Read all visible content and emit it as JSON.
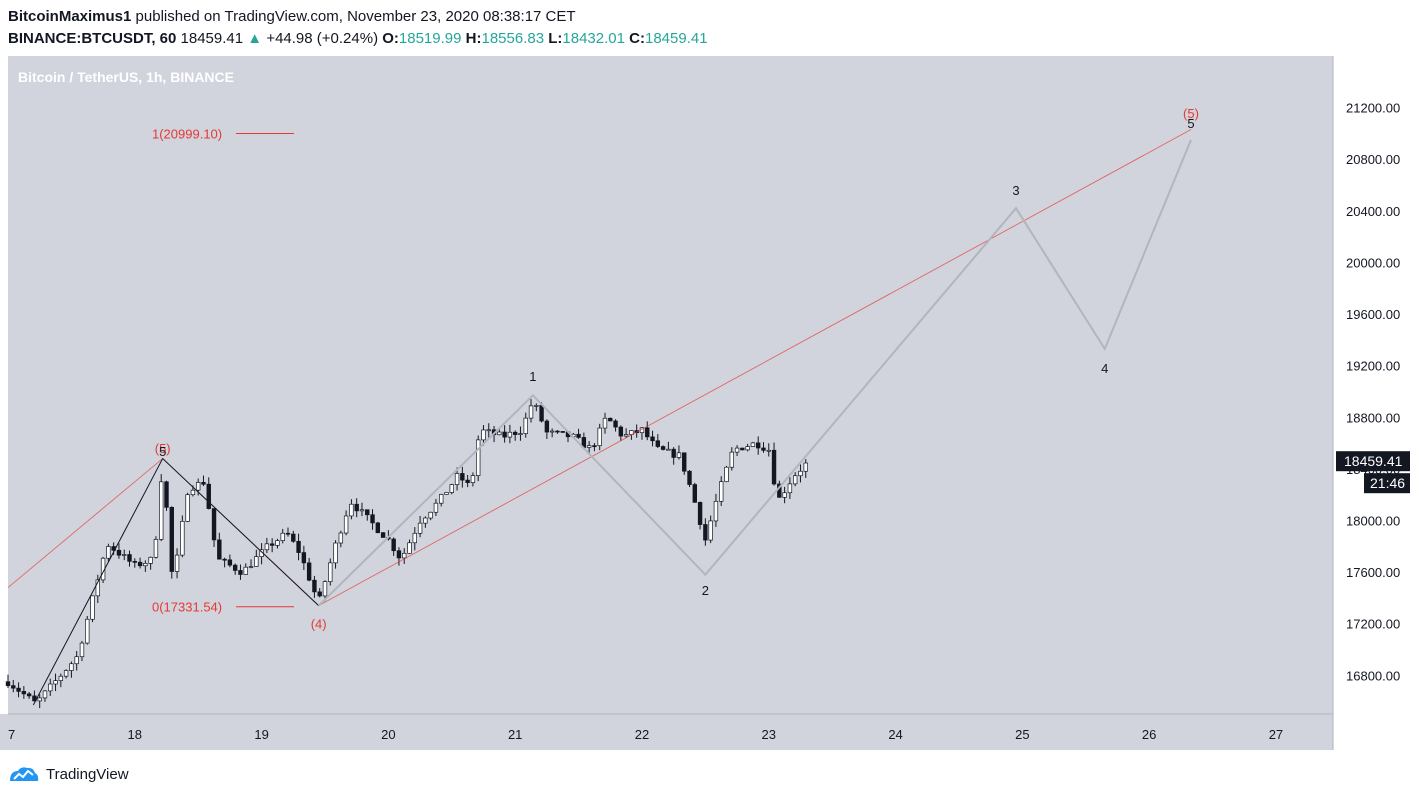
{
  "header": {
    "author": "BitcoinMaximus1",
    "published_text": "published on TradingView.com, November 23, 2020 08:38:17 CET",
    "symbol": "BINANCE:BTCUSDT, 60",
    "last": "18459.41",
    "change": "+44.98 (+0.24%)",
    "o_label": "O:",
    "o": "18519.99",
    "h_label": "H:",
    "h": "18556.83",
    "l_label": "L:",
    "l": "18432.01",
    "c_label": "C:",
    "c": "18459.41"
  },
  "footer": {
    "brand": "TradingView"
  },
  "colors": {
    "plot_bg": "#d1d4dc",
    "up": "#ffffff",
    "down": "#131722",
    "red": "#e53935",
    "projection": "#b2b5be",
    "axis_bg": "#ffffff"
  },
  "chart_data": {
    "type": "candlestick",
    "title": "Bitcoin / TetherUS, 1h, BINANCE",
    "currency": "USDT",
    "x_ticks": [
      "7",
      "18",
      "19",
      "20",
      "21",
      "22",
      "23",
      "24",
      "25",
      "26",
      "27"
    ],
    "x_range": [
      17.0,
      27.45
    ],
    "y_ticks": [
      "16800.00",
      "17200.00",
      "17600.00",
      "18000.00",
      "18400.00",
      "18800.00",
      "19200.00",
      "19600.00",
      "20000.00",
      "20400.00",
      "20800.00",
      "21200.00",
      "21600.00"
    ],
    "y_range": [
      16500,
      21600
    ],
    "last_price_label": "18459.41",
    "countdown": "21:46",
    "fib": [
      {
        "label": "1(20999.10)",
        "value": 20999.1
      },
      {
        "label": "0(17331.54)",
        "value": 17331.54
      }
    ],
    "swing_path": [
      [
        17.2,
        16570
      ],
      [
        18.22,
        18480
      ],
      [
        19.45,
        17340
      ]
    ],
    "projection_path": [
      [
        19.45,
        17340
      ],
      [
        21.14,
        18970
      ],
      [
        22.5,
        17580
      ],
      [
        24.95,
        20420
      ],
      [
        25.65,
        19330
      ],
      [
        26.33,
        20950
      ]
    ],
    "trendlines": [
      {
        "from": [
          17.0,
          17480
        ],
        "to": [
          18.22,
          18480
        ]
      },
      {
        "from": [
          18.22,
          18480
        ],
        "to": [
          19.45,
          17340
        ]
      },
      {
        "from": [
          19.45,
          17340
        ],
        "to": [
          26.33,
          21030
        ]
      }
    ],
    "wave_labels": [
      {
        "text": "(5)",
        "x": 18.22,
        "y": 18560,
        "color": "red"
      },
      {
        "text": "5",
        "x": 18.22,
        "y": 18540,
        "color": "black"
      },
      {
        "text": "(4)",
        "x": 19.45,
        "y": 17200,
        "color": "red"
      },
      {
        "text": "1",
        "x": 21.14,
        "y": 19120,
        "color": "black"
      },
      {
        "text": "2",
        "x": 22.5,
        "y": 17460,
        "color": "black"
      },
      {
        "text": "3",
        "x": 24.95,
        "y": 20560,
        "color": "black"
      },
      {
        "text": "4",
        "x": 25.65,
        "y": 19180,
        "color": "black"
      },
      {
        "text": "(5)",
        "x": 26.33,
        "y": 21160,
        "color": "red"
      },
      {
        "text": "5",
        "x": 26.33,
        "y": 21080,
        "color": "black"
      }
    ],
    "candles_path": [
      [
        17.0,
        16750
      ],
      [
        17.22,
        16580
      ],
      [
        17.55,
        16950
      ],
      [
        17.78,
        17820
      ],
      [
        18.0,
        17650
      ],
      [
        18.15,
        17700
      ],
      [
        18.22,
        18450
      ],
      [
        18.3,
        17500
      ],
      [
        18.42,
        18250
      ],
      [
        18.55,
        18300
      ],
      [
        18.65,
        17700
      ],
      [
        18.85,
        17600
      ],
      [
        19.05,
        17800
      ],
      [
        19.2,
        17900
      ],
      [
        19.3,
        17750
      ],
      [
        19.45,
        17360
      ],
      [
        19.58,
        17800
      ],
      [
        19.7,
        18150
      ],
      [
        19.85,
        18000
      ],
      [
        20.0,
        17850
      ],
      [
        20.1,
        17700
      ],
      [
        20.25,
        18000
      ],
      [
        20.4,
        18150
      ],
      [
        20.55,
        18350
      ],
      [
        20.65,
        18250
      ],
      [
        20.72,
        18700
      ],
      [
        20.9,
        18650
      ],
      [
        21.05,
        18700
      ],
      [
        21.14,
        18930
      ],
      [
        21.25,
        18680
      ],
      [
        21.45,
        18650
      ],
      [
        21.6,
        18550
      ],
      [
        21.72,
        18800
      ],
      [
        21.85,
        18650
      ],
      [
        22.0,
        18700
      ],
      [
        22.12,
        18550
      ],
      [
        22.3,
        18500
      ],
      [
        22.4,
        18200
      ],
      [
        22.5,
        17850
      ],
      [
        22.6,
        18200
      ],
      [
        22.72,
        18550
      ],
      [
        22.9,
        18600
      ],
      [
        23.0,
        18550
      ],
      [
        23.07,
        18150
      ],
      [
        23.2,
        18350
      ],
      [
        23.33,
        18470
      ]
    ],
    "candles_seed": 7
  }
}
